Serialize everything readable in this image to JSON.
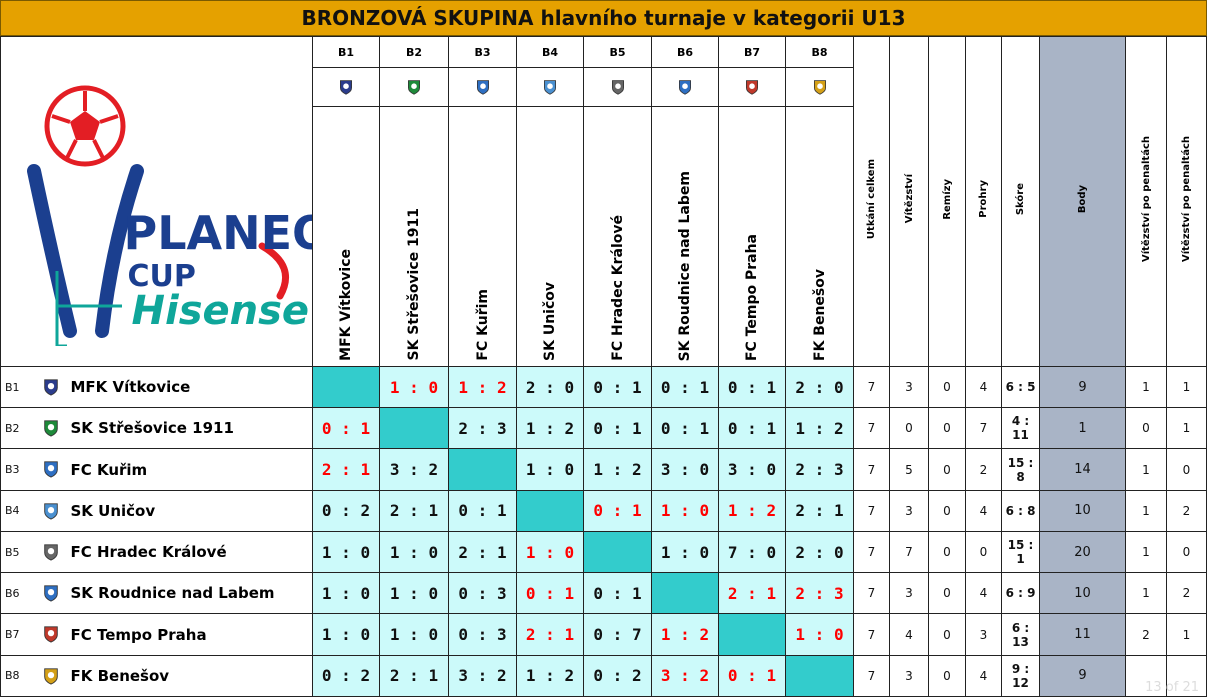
{
  "title": "BRONZOVÁ SKUPINA hlavního turnaje v kategorii U13",
  "logo": {
    "brand_line1": "PLANEO",
    "brand_line2": "CUP",
    "sponsor": "Hisense",
    "colors": {
      "blue": "#1b3f8f",
      "red": "#e31e24",
      "teal": "#0fa69a"
    }
  },
  "team_colors": {
    "B1": "#2b3c8c",
    "B2": "#1e8a3a",
    "B3": "#2e6fc2",
    "B4": "#4a90d0",
    "B5": "#666666",
    "B6": "#2e6fc2",
    "B7": "#c0392b",
    "B8": "#d4a017"
  },
  "stat_headers": [
    "Utkání celkem",
    "Vítězství",
    "Remízy",
    "Prohry",
    "Skóre",
    "Body",
    "Vítězství po penaltách",
    "Vítězství po penaltách"
  ],
  "page_number": "13 of 21",
  "chart_data": {
    "type": "table",
    "title": "BRONZOVÁ SKUPINA hlavního turnaje v kategorii U13",
    "teams": [
      {
        "code": "B1",
        "name": "MFK Vítkovice",
        "results": [
          "",
          "1 : 0",
          "1 : 2",
          "2 : 0",
          "0 : 1",
          "0 : 1",
          "0 : 1",
          "2 : 0"
        ],
        "red": [
          1,
          2
        ],
        "played": "7",
        "wins": "3",
        "draws": "0",
        "losses": "4",
        "score": "6 : 5",
        "points": "9",
        "pen1": "1",
        "pen2": "1"
      },
      {
        "code": "B2",
        "name": "SK Střešovice 1911",
        "results": [
          "0 : 1",
          "",
          "2 : 3",
          "1 : 2",
          "0 : 1",
          "0 : 1",
          "0 : 1",
          "1 : 2"
        ],
        "red": [
          0
        ],
        "played": "7",
        "wins": "0",
        "draws": "0",
        "losses": "7",
        "score": "4 : 11",
        "points": "1",
        "pen1": "0",
        "pen2": "1"
      },
      {
        "code": "B3",
        "name": "FC Kuřim",
        "results": [
          "2 : 1",
          "3 : 2",
          "",
          "1 : 0",
          "1 : 2",
          "3 : 0",
          "3 : 0",
          "2 : 3"
        ],
        "red": [
          0
        ],
        "played": "7",
        "wins": "5",
        "draws": "0",
        "losses": "2",
        "score": "15 : 8",
        "points": "14",
        "pen1": "1",
        "pen2": "0"
      },
      {
        "code": "B4",
        "name": "SK Uničov",
        "results": [
          "0 : 2",
          "2 : 1",
          "0 : 1",
          "",
          "0 : 1",
          "1 : 0",
          "1 : 2",
          "2 : 1"
        ],
        "red": [
          4,
          5,
          6
        ],
        "played": "7",
        "wins": "3",
        "draws": "0",
        "losses": "4",
        "score": "6 : 8",
        "points": "10",
        "pen1": "1",
        "pen2": "2"
      },
      {
        "code": "B5",
        "name": "FC Hradec Králové",
        "results": [
          "1 : 0",
          "1 : 0",
          "2 : 1",
          "1 : 0",
          "",
          "1 : 0",
          "7 : 0",
          "2 : 0"
        ],
        "red": [
          3
        ],
        "played": "7",
        "wins": "7",
        "draws": "0",
        "losses": "0",
        "score": "15 : 1",
        "points": "20",
        "pen1": "1",
        "pen2": "0"
      },
      {
        "code": "B6",
        "name": "SK Roudnice nad Labem",
        "results": [
          "1 : 0",
          "1 : 0",
          "0 : 3",
          "0 : 1",
          "0 : 1",
          "",
          "2 : 1",
          "2 : 3"
        ],
        "red": [
          3,
          6,
          7
        ],
        "played": "7",
        "wins": "3",
        "draws": "0",
        "losses": "4",
        "score": "6 : 9",
        "points": "10",
        "pen1": "1",
        "pen2": "2"
      },
      {
        "code": "B7",
        "name": "FC Tempo Praha",
        "results": [
          "1 : 0",
          "1 : 0",
          "0 : 3",
          "2 : 1",
          "0 : 7",
          "1 : 2",
          "",
          "1 : 0"
        ],
        "red": [
          3,
          5,
          7
        ],
        "played": "7",
        "wins": "4",
        "draws": "0",
        "losses": "3",
        "score": "6 : 13",
        "points": "11",
        "pen1": "2",
        "pen2": "1"
      },
      {
        "code": "B8",
        "name": "FK Benešov",
        "results": [
          "0 : 2",
          "2 : 1",
          "3 : 2",
          "1 : 2",
          "0 : 2",
          "3 : 2",
          "0 : 1",
          ""
        ],
        "red": [
          5,
          6
        ],
        "played": "7",
        "wins": "3",
        "draws": "0",
        "losses": "4",
        "score": "9 : 12",
        "points": "9",
        "pen1": "",
        "pen2": ""
      }
    ]
  }
}
